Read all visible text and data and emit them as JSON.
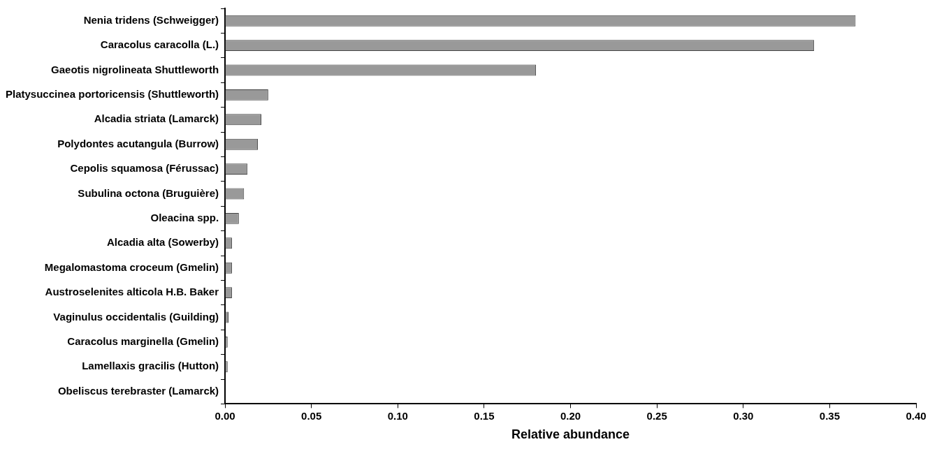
{
  "chart_data": {
    "type": "bar",
    "orientation": "horizontal",
    "categories": [
      "Nenia tridens (Schweigger)",
      "Caracolus caracolla (L.)",
      "Gaeotis nigrolineata Shuttleworth",
      "Platysuccinea portoricensis (Shuttleworth)",
      "Alcadia striata (Lamarck)",
      "Polydontes acutangula (Burrow)",
      "Cepolis squamosa (Férussac)",
      "Subulina octona (Bruguière)",
      "Oleacina spp.",
      "Alcadia alta (Sowerby)",
      "Megalomastoma croceum (Gmelin)",
      "Austroselenites alticola H.B. Baker",
      "Vaginulus occidentalis (Guilding)",
      "Caracolus marginella (Gmelin)",
      "Lamellaxis gracilis (Hutton)",
      "Obeliscus terebraster (Lamarck)"
    ],
    "values": [
      0.365,
      0.341,
      0.18,
      0.025,
      0.021,
      0.019,
      0.013,
      0.011,
      0.008,
      0.004,
      0.004,
      0.004,
      0.002,
      0.0015,
      0.0015,
      0
    ],
    "color": "#999999",
    "xlabel": "Relative abundance",
    "xlim": [
      0,
      0.4
    ],
    "xticks": [
      {
        "value": 0,
        "label": "0.00"
      },
      {
        "value": 0.05,
        "label": "0.05"
      },
      {
        "value": 0.1,
        "label": "0.10"
      },
      {
        "value": 0.15,
        "label": "0.15"
      },
      {
        "value": 0.2,
        "label": "0.20"
      },
      {
        "value": 0.25,
        "label": "0.25"
      },
      {
        "value": 0.3,
        "label": "0.30"
      },
      {
        "value": 0.35,
        "label": "0.35"
      },
      {
        "value": 0.4,
        "label": "0.40"
      }
    ],
    "grid": false,
    "legend": false
  }
}
